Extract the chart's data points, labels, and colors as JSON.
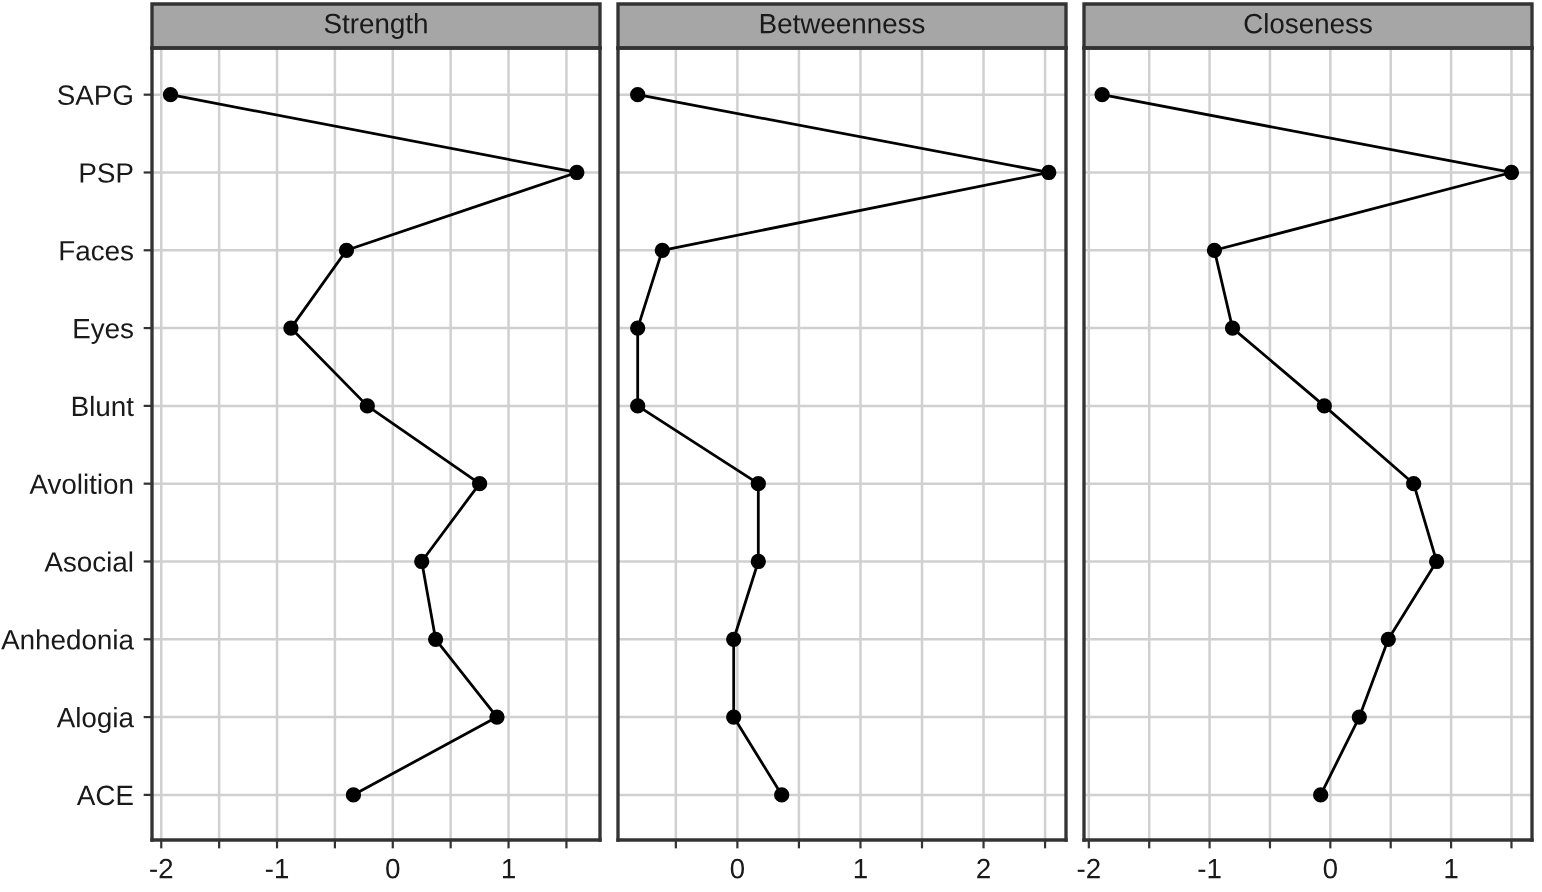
{
  "chart_data": [
    {
      "type": "line",
      "title": "Strength",
      "orientation": "horizontal",
      "categories": [
        "SAPG",
        "PSP",
        "Faces",
        "Eyes",
        "Blunt",
        "Avolition",
        "Asocial",
        "Anhedonia",
        "Alogia",
        "ACE"
      ],
      "series": [
        {
          "color": "#000000",
          "values": [
            -1.92,
            1.59,
            -0.4,
            -0.88,
            -0.22,
            0.75,
            0.25,
            0.37,
            0.9,
            -0.34
          ]
        }
      ],
      "xlim": [
        -2.08,
        1.79
      ],
      "xticks": [
        -2,
        {
          "value": -1.5,
          "label": null
        },
        -1,
        {
          "value": -0.5,
          "label": null
        },
        0,
        {
          "value": 0.5,
          "label": null
        },
        1,
        {
          "value": 1.5,
          "label": null
        }
      ],
      "grid": true,
      "marker": "circle",
      "line_style": "solid"
    },
    {
      "type": "line",
      "title": "Betweenness",
      "orientation": "horizontal",
      "categories": [
        null,
        null,
        null,
        null,
        null,
        null,
        null,
        null,
        null,
        null
      ],
      "series": [
        {
          "color": "#000000",
          "values": [
            -0.81,
            2.53,
            -0.61,
            -0.81,
            -0.81,
            0.17,
            0.17,
            -0.03,
            -0.03,
            0.36
          ]
        }
      ],
      "xlim": [
        -0.97,
        2.67
      ],
      "xticks": [
        {
          "value": -0.5,
          "label": null
        },
        0,
        {
          "value": 0.5,
          "label": null
        },
        1,
        {
          "value": 1.5,
          "label": null
        },
        2,
        {
          "value": 2.5,
          "label": null
        }
      ],
      "grid": true,
      "marker": "circle",
      "line_style": "solid",
      "tick_labels": "x"
    },
    {
      "type": "line",
      "title": "Closeness",
      "orientation": "horizontal",
      "categories": [
        null,
        null,
        null,
        null,
        null,
        null,
        null,
        null,
        null,
        null
      ],
      "series": [
        {
          "color": "#000000",
          "values": [
            -1.89,
            1.5,
            -0.96,
            -0.81,
            -0.05,
            0.69,
            0.88,
            0.48,
            0.24,
            -0.08
          ]
        }
      ],
      "xlim": [
        -2.04,
        1.67
      ],
      "xticks": [
        -2,
        {
          "value": -1.5,
          "label": null
        },
        -1,
        {
          "value": -0.5,
          "label": null
        },
        0,
        {
          "value": 0.5,
          "label": null
        },
        1,
        {
          "value": 1.5,
          "label": null
        }
      ],
      "grid": true,
      "marker": "circle",
      "line_style": "solid",
      "tick_labels": "x"
    }
  ]
}
